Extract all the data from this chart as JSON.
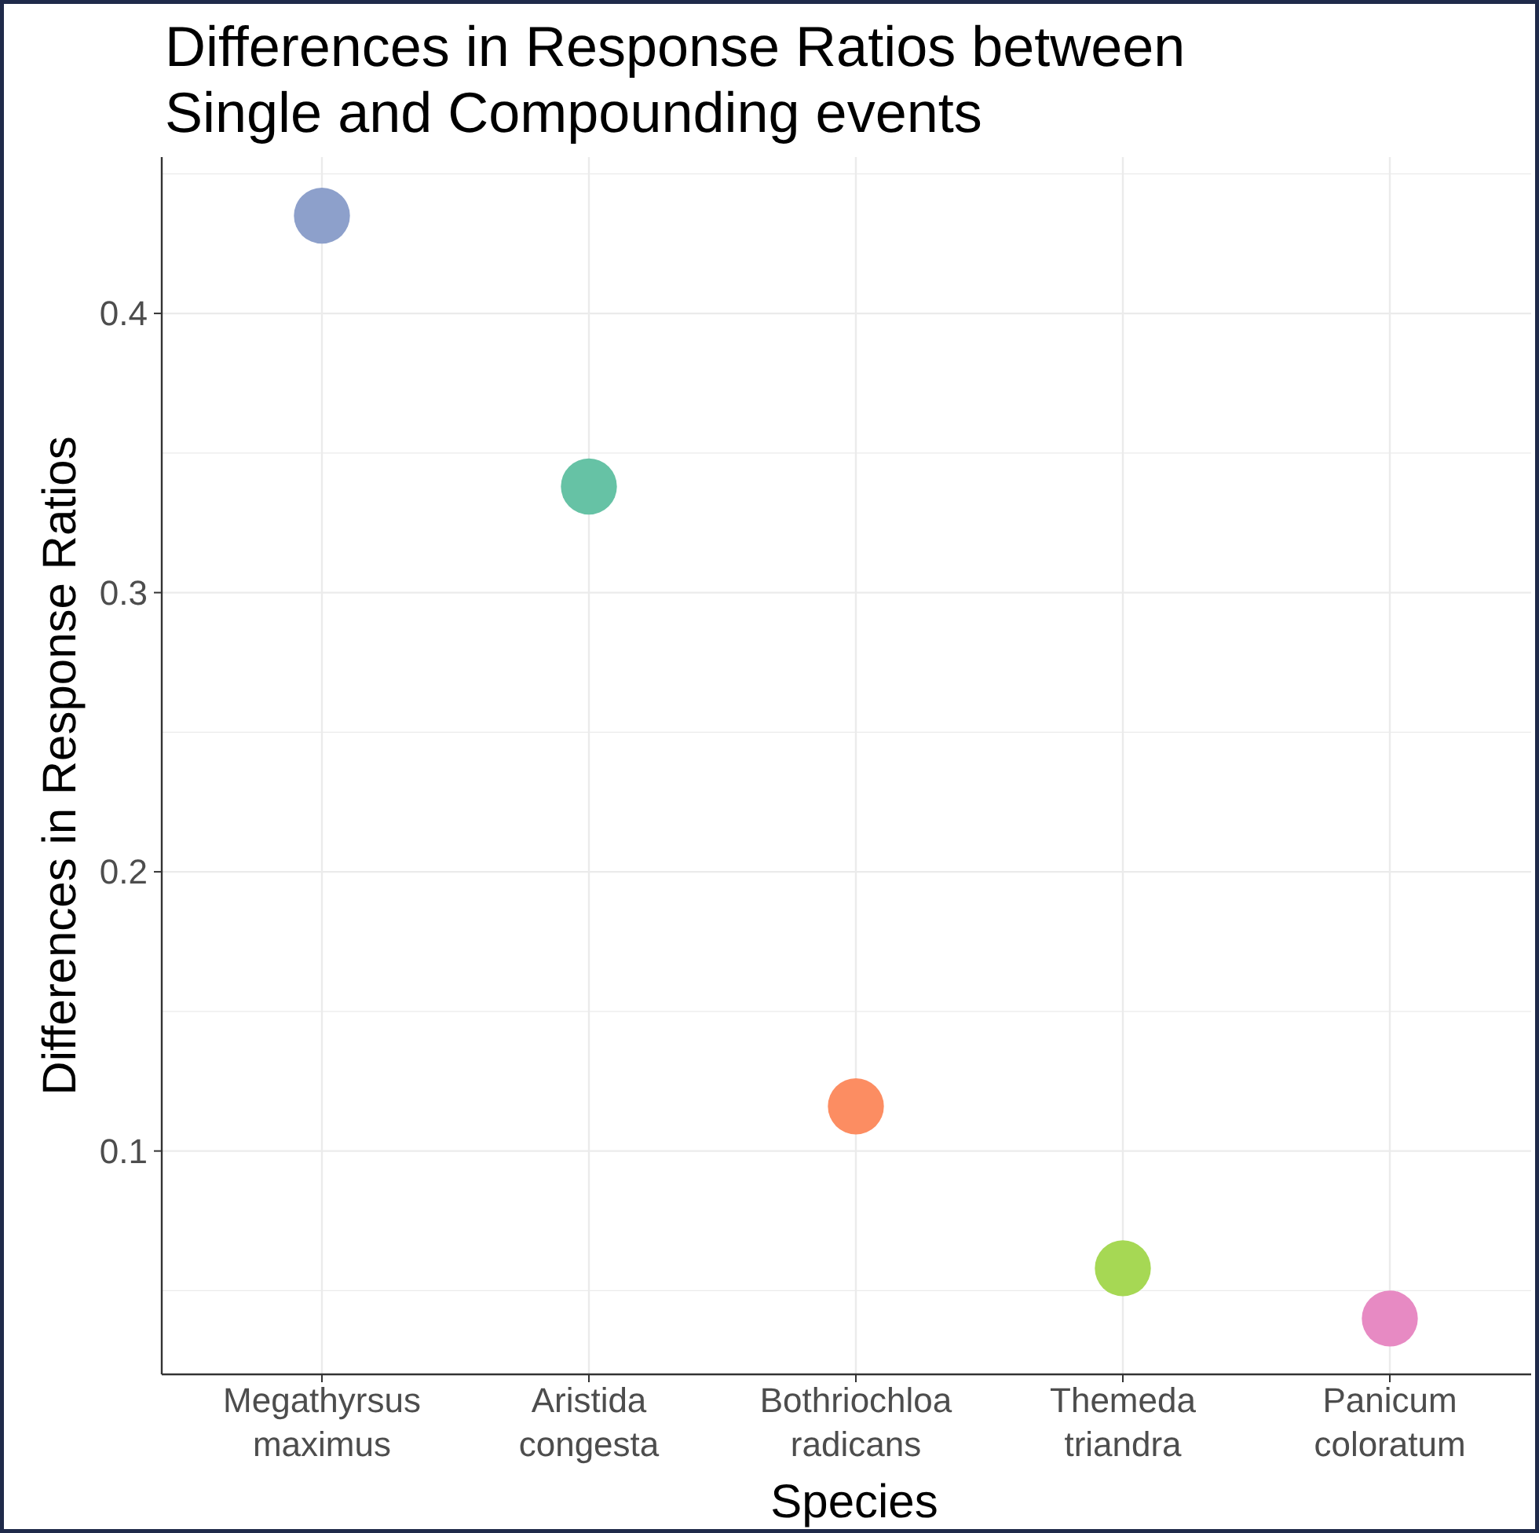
{
  "chart_data": {
    "type": "scatter",
    "title": "Differences in Response Ratios between\nSingle and Compounding events",
    "xlabel": "Species",
    "ylabel": "Differences in Response Ratios",
    "categories": [
      "Megathyrsus\nmaximus",
      "Aristida\ncongesta",
      "Bothriochloa\nradicans",
      "Themeda\ntriandra",
      "Panicum\ncoloratum"
    ],
    "values": [
      0.435,
      0.338,
      0.116,
      0.058,
      0.04
    ],
    "colors": [
      "#8da0cb",
      "#66c2a5",
      "#fc8d62",
      "#a6d854",
      "#e78ac3"
    ],
    "ylim": [
      0.02,
      0.456
    ],
    "yticks": [
      {
        "value": 0.05,
        "label": null
      },
      0.1,
      {
        "value": 0.15,
        "label": null
      },
      0.2,
      {
        "value": 0.25,
        "label": null
      },
      0.3,
      {
        "value": 0.35,
        "label": null
      },
      0.4,
      {
        "value": 0.45,
        "label": null
      }
    ],
    "grid": true,
    "marker": "circle"
  }
}
